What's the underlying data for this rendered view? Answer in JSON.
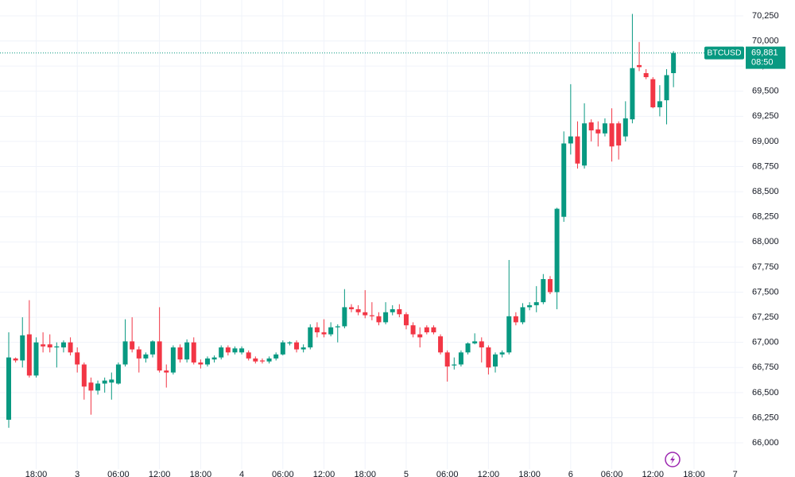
{
  "chart_data": {
    "type": "candlestick",
    "symbol": "BTCUSD",
    "up_color": "#089981",
    "down_color": "#f23645",
    "grid": true,
    "ylim": [
      65660,
      70408
    ],
    "yticks": [
      {
        "value": 66000,
        "label": "66,000"
      },
      {
        "value": 66250,
        "label": "66,250"
      },
      {
        "value": 66500,
        "label": "66,500"
      },
      {
        "value": 66750,
        "label": "66,750"
      },
      {
        "value": 67000,
        "label": "67,000"
      },
      {
        "value": 67250,
        "label": "67,250"
      },
      {
        "value": 67500,
        "label": "67,500"
      },
      {
        "value": 67750,
        "label": "67,750"
      },
      {
        "value": 68000,
        "label": "68,000"
      },
      {
        "value": 68250,
        "label": "68,250"
      },
      {
        "value": 68500,
        "label": "68,500"
      },
      {
        "value": 68750,
        "label": "68,750"
      },
      {
        "value": 69000,
        "label": "69,000"
      },
      {
        "value": 69250,
        "label": "69,250"
      },
      {
        "value": 69500,
        "label": "69,500"
      },
      {
        "value": 69750,
        "label": "69,750"
      },
      {
        "value": 70000,
        "label": "70,000"
      },
      {
        "value": 70250,
        "label": "70,250"
      }
    ],
    "categories": [
      null,
      null,
      null,
      null,
      "18:00",
      null,
      null,
      null,
      null,
      null,
      "3",
      null,
      null,
      null,
      null,
      null,
      "06:00",
      null,
      null,
      null,
      null,
      null,
      "12:00",
      null,
      null,
      null,
      null,
      null,
      "18:00",
      null,
      null,
      null,
      null,
      null,
      "4",
      null,
      null,
      null,
      null,
      null,
      "06:00",
      null,
      null,
      null,
      null,
      null,
      "12:00",
      null,
      null,
      null,
      null,
      null,
      "18:00",
      null,
      null,
      null,
      null,
      null,
      "5",
      null,
      null,
      null,
      null,
      null,
      "06:00",
      null,
      null,
      null,
      null,
      null,
      "12:00",
      null,
      null,
      null,
      null,
      null,
      "18:00",
      null,
      null,
      null,
      null,
      null,
      "6",
      null,
      null,
      null,
      null,
      null,
      "06:00",
      null,
      null,
      null,
      null,
      null,
      "12:00",
      null,
      null,
      null,
      null,
      null,
      "18:00",
      null,
      null,
      null,
      null,
      null,
      "7"
    ],
    "open": [
      66230,
      66840,
      66820,
      67080,
      66670,
      66980,
      66980,
      66950,
      66950,
      67000,
      66900,
      66780,
      66600,
      66520,
      66590,
      66600,
      66590,
      66780,
      67010,
      66930,
      66840,
      66880,
      67010,
      66720,
      66700,
      66950,
      66830,
      67000,
      66800,
      66780,
      66830,
      66850,
      66950,
      66900,
      66900,
      66900,
      66840,
      66820,
      66810,
      66840,
      66880,
      66990,
      67000,
      66930,
      66950,
      67150,
      67100,
      67080,
      67150,
      67160,
      67350,
      67330,
      67300,
      67270,
      67260,
      67200,
      67300,
      67330,
      67280,
      67170,
      67080,
      67150,
      67150,
      67060,
      66900,
      66770,
      66780,
      66900,
      66990,
      67010,
      66950,
      66760,
      66880,
      66900,
      67260,
      67200,
      67350,
      67370,
      67400,
      67630,
      67500,
      68250,
      68980,
      69050,
      68760,
      69190,
      69120,
      69080,
      69180,
      69180,
      69050,
      69220,
      69760,
      69680,
      69620,
      69340,
      69410,
      69680,
      null,
      null,
      null,
      null,
      null,
      null,
      null,
      null,
      null
    ],
    "high": [
      67100,
      66850,
      67250,
      67420,
      67050,
      67100,
      67080,
      67000,
      67020,
      67050,
      66950,
      66800,
      66650,
      66620,
      66650,
      66700,
      66800,
      67230,
      67250,
      66960,
      66900,
      67020,
      67350,
      66780,
      66970,
      66980,
      67030,
      67050,
      66830,
      66860,
      66870,
      66970,
      66970,
      66960,
      66960,
      66920,
      66860,
      66840,
      66860,
      66900,
      67020,
      67010,
      67020,
      66980,
      67180,
      67200,
      67230,
      67200,
      67180,
      67530,
      67380,
      67370,
      67520,
      67400,
      67300,
      67400,
      67370,
      67380,
      67300,
      67200,
      67150,
      67170,
      67170,
      67080,
      66920,
      66850,
      66920,
      67000,
      67090,
      67050,
      66970,
      66900,
      66920,
      67820,
      67300,
      67390,
      67400,
      67560,
      67680,
      67660,
      68340,
      69100,
      69570,
      69200,
      69380,
      69220,
      69200,
      69230,
      69330,
      69200,
      69400,
      70270,
      69990,
      69720,
      69640,
      69560,
      69720,
      69900,
      null,
      null,
      null,
      null,
      null,
      null,
      null,
      null,
      null
    ],
    "low": [
      66150,
      66800,
      66750,
      66650,
      66650,
      66900,
      66900,
      66750,
      66900,
      66870,
      66700,
      66430,
      66280,
      66480,
      66500,
      66430,
      66580,
      66760,
      66900,
      66700,
      66800,
      66850,
      66700,
      66550,
      66680,
      66800,
      66800,
      66780,
      66740,
      66760,
      66800,
      66830,
      66870,
      66880,
      66880,
      66820,
      66790,
      66790,
      66790,
      66820,
      66870,
      66970,
      66900,
      66900,
      66930,
      67050,
      67050,
      67060,
      67000,
      67140,
      67300,
      67270,
      67240,
      67220,
      67170,
      67180,
      67270,
      67250,
      67130,
      67050,
      66950,
      67080,
      67080,
      66880,
      66610,
      66730,
      66760,
      66880,
      66980,
      66800,
      66680,
      66700,
      66850,
      66880,
      67170,
      67180,
      67320,
      67300,
      67380,
      67480,
      67330,
      68200,
      68870,
      68730,
      68730,
      69000,
      68950,
      69050,
      68800,
      68820,
      69000,
      69180,
      69700,
      69620,
      69330,
      69250,
      69170,
      69540,
      null,
      null,
      null,
      null,
      null,
      null,
      null,
      null,
      null
    ],
    "close": [
      66850,
      66820,
      67070,
      66670,
      67000,
      66960,
      66950,
      66960,
      67000,
      66900,
      66780,
      66560,
      66520,
      66590,
      66620,
      66630,
      66780,
      67010,
      66930,
      66840,
      66880,
      67010,
      66720,
      66700,
      66950,
      66830,
      67000,
      66800,
      66780,
      66840,
      66850,
      66950,
      66900,
      66940,
      66940,
      66840,
      66810,
      66810,
      66840,
      66880,
      67000,
      67000,
      66930,
      66950,
      67150,
      67100,
      67080,
      67150,
      67160,
      67350,
      67330,
      67300,
      67270,
      67260,
      67200,
      67300,
      67330,
      67280,
      67170,
      67080,
      67050,
      67100,
      67100,
      66900,
      66760,
      66780,
      66900,
      66990,
      67010,
      66950,
      66750,
      66880,
      66900,
      67260,
      67200,
      67350,
      67370,
      67400,
      67630,
      67500,
      68330,
      68980,
      69050,
      68780,
      69180,
      69110,
      69080,
      69180,
      68950,
      68960,
      69230,
      69730,
      69740,
      69640,
      69340,
      69400,
      69660,
      69881,
      null,
      null,
      null,
      null,
      null,
      null,
      null,
      null,
      null
    ],
    "last_price_label": "69,881",
    "countdown": "08:50"
  }
}
